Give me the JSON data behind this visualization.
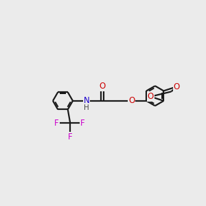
{
  "bg_color": "#ebebeb",
  "bond_color": "#1a1a1a",
  "N_color": "#1a00cc",
  "O_color": "#cc0000",
  "F_color": "#cc00cc",
  "bond_width": 1.6,
  "figsize": [
    3.0,
    3.0
  ],
  "dpi": 100,
  "xlim": [
    0,
    10
  ],
  "ylim": [
    0,
    10
  ]
}
